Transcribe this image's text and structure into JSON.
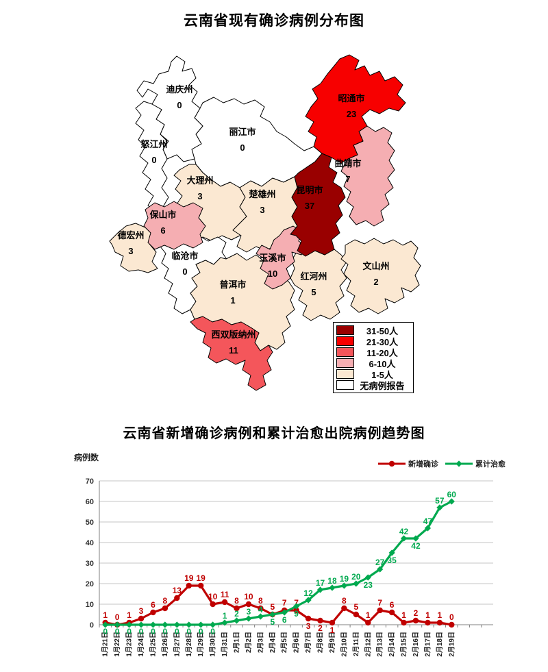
{
  "map_section": {
    "title": "云南省现有确诊病例分布图",
    "regions": [
      {
        "id": "diqing",
        "name": "迪庆州",
        "value": "0",
        "level": "none"
      },
      {
        "id": "lijiang",
        "name": "丽江市",
        "value": "0",
        "level": "none"
      },
      {
        "id": "nujiang",
        "name": "怒江州",
        "value": "0",
        "level": "none"
      },
      {
        "id": "dali",
        "name": "大理州",
        "value": "3",
        "level": "l1_5"
      },
      {
        "id": "baoshan",
        "name": "保山市",
        "value": "6",
        "level": "l6_10"
      },
      {
        "id": "dehong",
        "name": "德宏州",
        "value": "3",
        "level": "l1_5"
      },
      {
        "id": "lincang",
        "name": "临沧市",
        "value": "0",
        "level": "none"
      },
      {
        "id": "chuxiong",
        "name": "楚雄州",
        "value": "3",
        "level": "l1_5"
      },
      {
        "id": "kunming",
        "name": "昆明市",
        "value": "37",
        "level": "l31_50"
      },
      {
        "id": "zhaotong",
        "name": "昭通市",
        "value": "23",
        "level": "l21_30"
      },
      {
        "id": "qujing",
        "name": "曲靖市",
        "value": "7",
        "level": "l6_10"
      },
      {
        "id": "yuxi",
        "name": "玉溪市",
        "value": "10",
        "level": "l6_10"
      },
      {
        "id": "puer",
        "name": "普洱市",
        "value": "1",
        "level": "l1_5"
      },
      {
        "id": "honghe",
        "name": "红河州",
        "value": "5",
        "level": "l1_5"
      },
      {
        "id": "wenshan",
        "name": "文山州",
        "value": "2",
        "level": "l1_5"
      },
      {
        "id": "xishuangbanna",
        "name": "西双版纳州",
        "value": "11",
        "level": "l11_20"
      }
    ],
    "level_colors": {
      "l31_50": "#990000",
      "l21_30": "#F70000",
      "l11_20": "#F4565B",
      "l6_10": "#F5AEB2",
      "l1_5": "#FBE8D2",
      "none": "#FFFFFF"
    },
    "legend": [
      {
        "label": "31-50人",
        "color": "#990000"
      },
      {
        "label": "21-30人",
        "color": "#F70000"
      },
      {
        "label": "11-20人",
        "color": "#F4565B"
      },
      {
        "label": "6-10人",
        "color": "#F5AEB2"
      },
      {
        "label": "1-5人",
        "color": "#FBE8D2"
      },
      {
        "label": "无病例报告",
        "color": "#FFFFFF"
      }
    ]
  },
  "chart_data": {
    "type": "line",
    "title": "云南省新增确诊病例和累计治愈出院病例趋势图",
    "ylabel": "病例数",
    "xlabel": "",
    "ylim": [
      0,
      70
    ],
    "ytick_interval": 10,
    "grid": true,
    "legend_position": "top-right",
    "categories": [
      "1月21日",
      "1月22日",
      "1月23日",
      "1月24日",
      "1月25日",
      "1月26日",
      "1月27日",
      "1月28日",
      "1月29日",
      "1月30日",
      "1月31日",
      "2月1日",
      "2月2日",
      "2月3日",
      "2月4日",
      "2月5日",
      "2月6日",
      "2月7日",
      "2月8日",
      "2月9日",
      "2月10日",
      "2月11日",
      "2月12日",
      "2月13日",
      "2月14日",
      "2月15日",
      "2月16日",
      "2月17日",
      "2月18日",
      "2月19日"
    ],
    "series": [
      {
        "name": "新增确诊",
        "color": "#C00000",
        "marker": "circle",
        "values": [
          1,
          0,
          1,
          3,
          6,
          8,
          13,
          19,
          19,
          10,
          11,
          8,
          10,
          8,
          5,
          7,
          7,
          3,
          2,
          1,
          8,
          5,
          1,
          7,
          6,
          1,
          2,
          1,
          1,
          0
        ]
      },
      {
        "name": "累计治愈",
        "color": "#00A94F",
        "marker": "diamond",
        "values": [
          0,
          0,
          0,
          0,
          0,
          0,
          0,
          0,
          0,
          0,
          1,
          2,
          3,
          4,
          5,
          6,
          9,
          12,
          17,
          18,
          19,
          20,
          23,
          27,
          35,
          42,
          42,
          47,
          57,
          60
        ]
      }
    ]
  }
}
